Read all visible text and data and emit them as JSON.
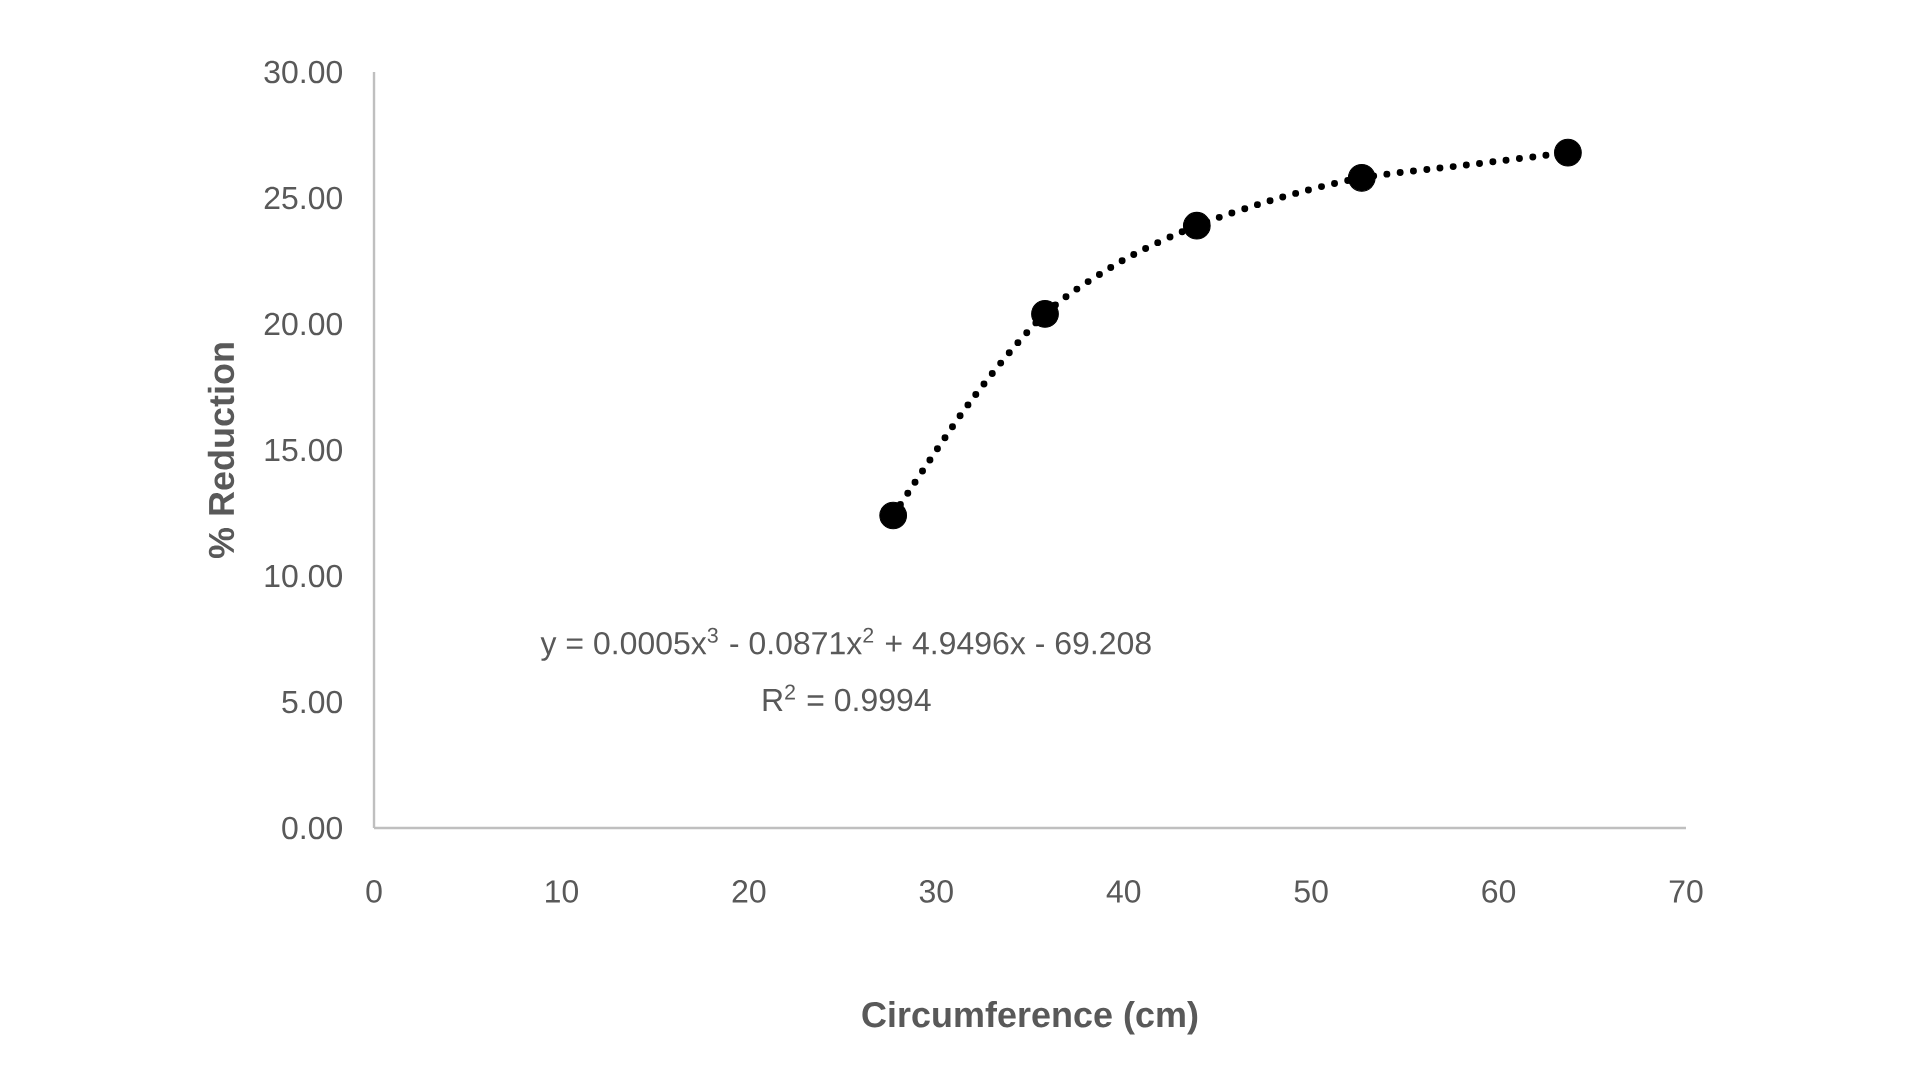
{
  "chart_data": {
    "type": "scatter",
    "xlabel": "Circumference (cm)",
    "ylabel": "% Reduction",
    "series": [
      {
        "type": "scatter",
        "color": "#000000",
        "marker": "circle",
        "x": [
          27.7,
          35.8,
          43.9,
          52.7,
          63.7
        ],
        "values": [
          12.4,
          20.4,
          23.9,
          25.8,
          26.8
        ]
      },
      {
        "type": "line",
        "color": "#000000",
        "marker": "none",
        "line_style": "dotted",
        "x": [
          27.7,
          31.8,
          35.8,
          39.9,
          43.9,
          48.3,
          52.7,
          58.2,
          63.7
        ],
        "values": [
          12.4,
          16.9,
          20.4,
          22.5,
          23.9,
          25.0,
          25.8,
          26.3,
          26.8
        ]
      }
    ],
    "annotations": [
      "y = 0.0005x$^{3}$ - 0.0871x$^{2}$ + 4.9496x - 69.208",
      "R$^{2}$ = 0.9994"
    ],
    "xlim": [
      0,
      70
    ],
    "xticks": [
      0,
      10,
      20,
      30,
      40,
      50,
      60,
      70
    ],
    "ylim": [
      0,
      30
    ],
    "yticks": [
      {
        "value": 0,
        "label": "0.00"
      },
      {
        "value": 5,
        "label": "5.00"
      },
      {
        "value": 10,
        "label": "10.00"
      },
      {
        "value": 15,
        "label": "15.00"
      },
      {
        "value": 20,
        "label": "20.00"
      },
      {
        "value": 25,
        "label": "25.00"
      },
      {
        "value": 30,
        "label": "30.00"
      }
    ],
    "grid": false,
    "legend": false
  }
}
